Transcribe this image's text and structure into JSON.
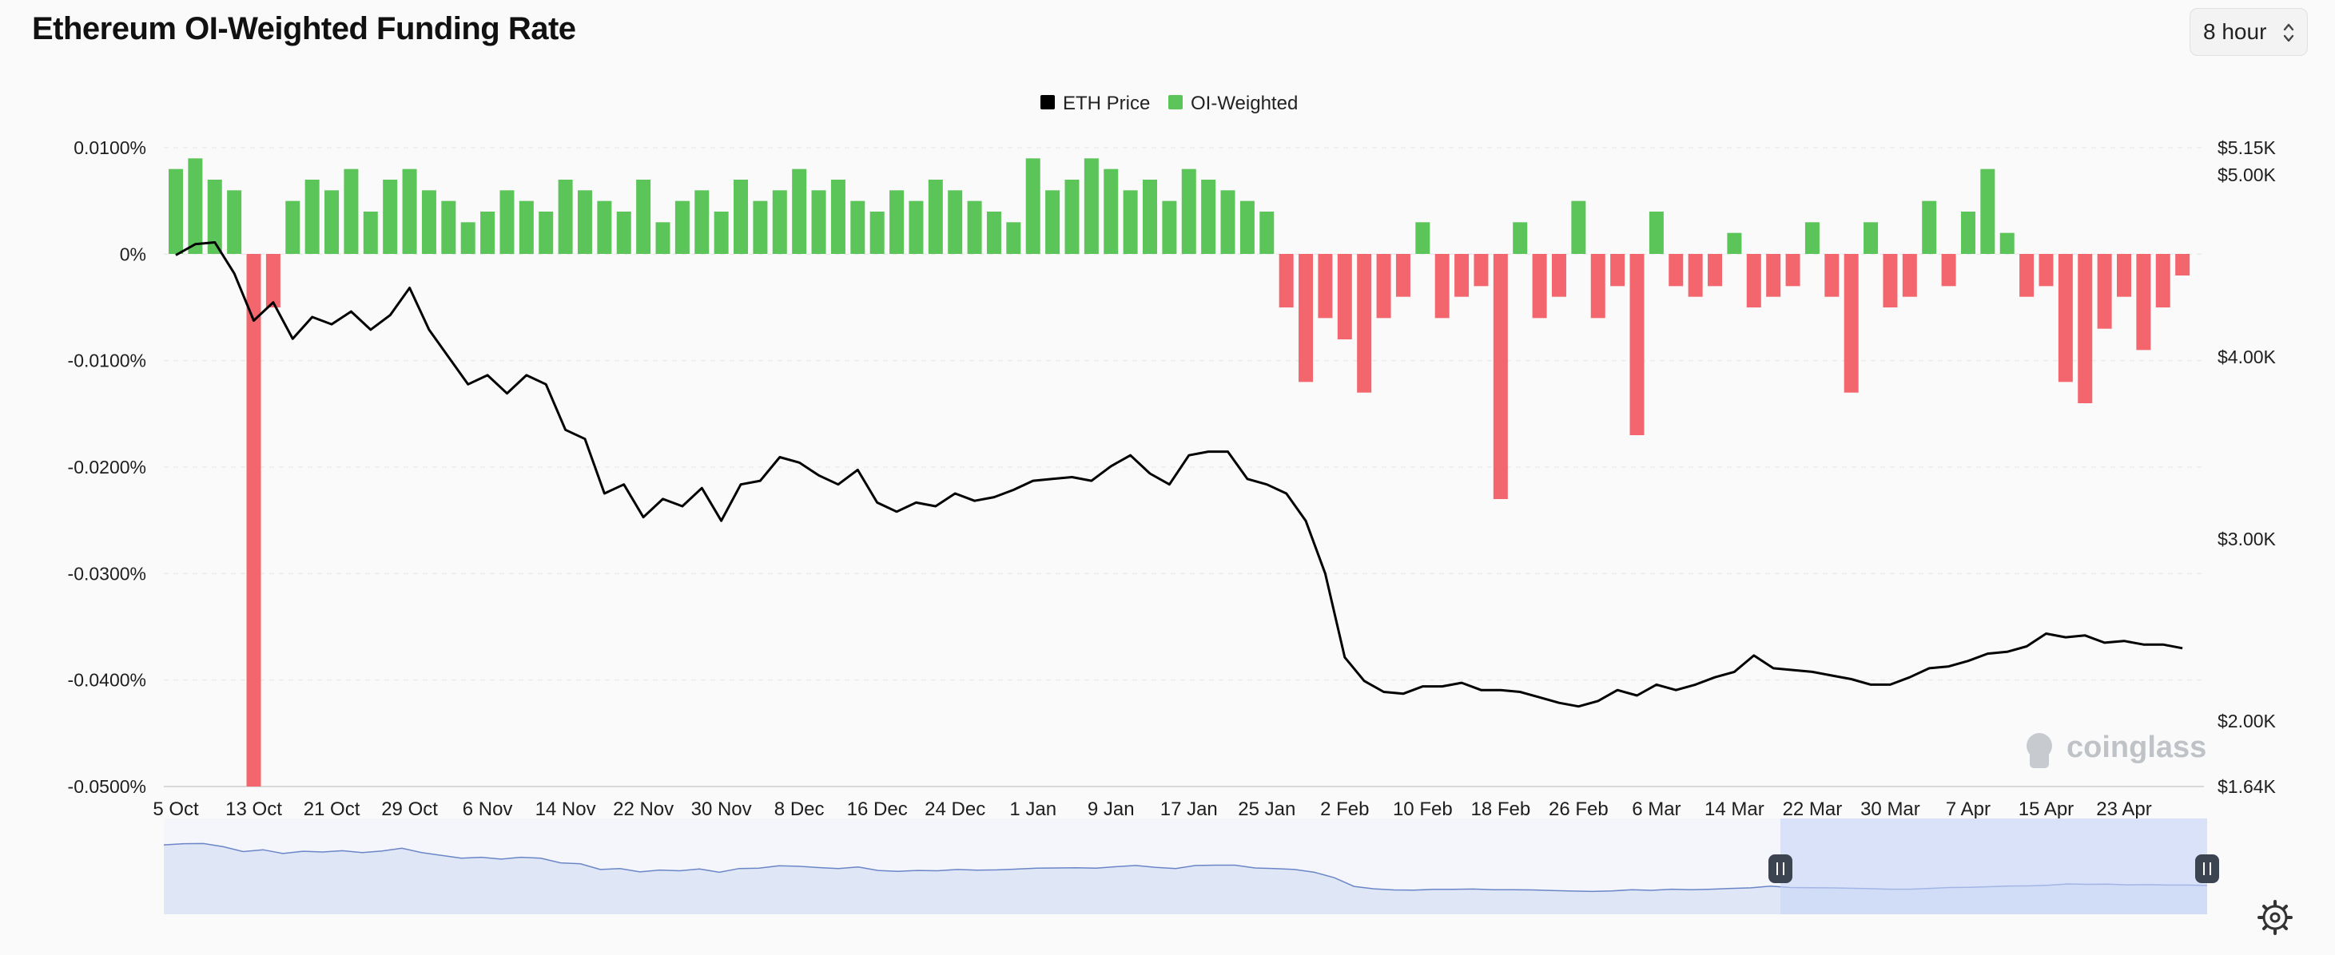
{
  "header": {
    "title": "Ethereum OI-Weighted Funding Rate",
    "interval": "8 hour"
  },
  "watermark": "coinglass",
  "colors": {
    "price_line": "#000000",
    "positive": "#5cc55a",
    "negative": "#f4666e",
    "navigator_fill": "#dfe6f5",
    "navigator_line": "#6b86c8",
    "navigator_selection": "#c8d5f8"
  },
  "icons": [
    "chevron-updown-icon",
    "settings-icon",
    "coinglass-logo-icon"
  ],
  "chart_data": {
    "type": "area",
    "title": "Ethereum OI-Weighted Funding Rate",
    "legend": {
      "placement": "top-center",
      "entries": [
        "ETH Price",
        "OI-Weighted"
      ]
    },
    "grid": true,
    "x_ticks": [
      "5 Oct",
      "13 Oct",
      "21 Oct",
      "29 Oct",
      "6 Nov",
      "14 Nov",
      "22 Nov",
      "30 Nov",
      "8 Dec",
      "16 Dec",
      "24 Dec",
      "1 Jan",
      "9 Jan",
      "17 Jan",
      "25 Jan",
      "2 Feb",
      "10 Feb",
      "18 Feb",
      "26 Feb",
      "6 Mar",
      "14 Mar",
      "22 Mar",
      "30 Mar",
      "7 Apr",
      "15 Apr",
      "23 Apr"
    ],
    "y_left": {
      "range": [
        -0.05,
        0.01
      ],
      "ticks": [
        "0.0100%",
        "0%",
        "-0.0100%",
        "-0.0200%",
        "-0.0300%",
        "-0.0400%",
        "-0.0500%"
      ]
    },
    "y_right": {
      "range": [
        1640,
        5150
      ],
      "ticks": [
        "$5.15K",
        "$5.00K",
        "$4.00K",
        "$3.00K",
        "$2.00K",
        "$1.64K"
      ],
      "tick_values": [
        5150,
        5000,
        4000,
        3000,
        2000,
        1640
      ]
    },
    "series": [
      {
        "name": "ETH Price",
        "axis": "right",
        "x": [
          "5 Oct",
          "7 Oct",
          "9 Oct",
          "11 Oct",
          "13 Oct",
          "15 Oct",
          "17 Oct",
          "19 Oct",
          "21 Oct",
          "23 Oct",
          "25 Oct",
          "27 Oct",
          "29 Oct",
          "31 Oct",
          "2 Nov",
          "4 Nov",
          "6 Nov",
          "8 Nov",
          "10 Nov",
          "12 Nov",
          "14 Nov",
          "16 Nov",
          "18 Nov",
          "20 Nov",
          "22 Nov",
          "24 Nov",
          "26 Nov",
          "28 Nov",
          "30 Nov",
          "2 Dec",
          "4 Dec",
          "6 Dec",
          "8 Dec",
          "10 Dec",
          "12 Dec",
          "14 Dec",
          "16 Dec",
          "18 Dec",
          "20 Dec",
          "22 Dec",
          "24 Dec",
          "26 Dec",
          "28 Dec",
          "30 Dec",
          "1 Jan",
          "3 Jan",
          "5 Jan",
          "7 Jan",
          "9 Jan",
          "11 Jan",
          "13 Jan",
          "15 Jan",
          "17 Jan",
          "19 Jan",
          "21 Jan",
          "23 Jan",
          "25 Jan",
          "27 Jan",
          "29 Jan",
          "31 Jan",
          "2 Feb",
          "4 Feb",
          "6 Feb",
          "8 Feb",
          "10 Feb",
          "12 Feb",
          "14 Feb",
          "16 Feb",
          "18 Feb",
          "20 Feb",
          "22 Feb",
          "24 Feb",
          "26 Feb",
          "28 Feb",
          "2 Mar",
          "4 Mar",
          "6 Mar",
          "8 Mar",
          "10 Mar",
          "12 Mar",
          "14 Mar",
          "16 Mar",
          "18 Mar",
          "20 Mar",
          "22 Mar",
          "24 Mar",
          "26 Mar",
          "28 Mar",
          "30 Mar",
          "1 Apr",
          "3 Apr",
          "5 Apr",
          "7 Apr",
          "9 Apr",
          "11 Apr",
          "13 Apr",
          "15 Apr",
          "17 Apr",
          "19 Apr",
          "21 Apr",
          "23 Apr",
          "25 Apr",
          "27 Apr",
          "29 Apr"
        ],
        "values": [
          4560,
          4620,
          4630,
          4460,
          4200,
          4300,
          4100,
          4220,
          4180,
          4250,
          4150,
          4230,
          4380,
          4150,
          4000,
          3850,
          3900,
          3800,
          3900,
          3850,
          3600,
          3550,
          3250,
          3300,
          3120,
          3220,
          3180,
          3280,
          3100,
          3300,
          3320,
          3450,
          3420,
          3350,
          3300,
          3380,
          3200,
          3150,
          3200,
          3180,
          3250,
          3210,
          3230,
          3270,
          3320,
          3330,
          3340,
          3320,
          3400,
          3460,
          3360,
          3300,
          3460,
          3480,
          3480,
          3330,
          3300,
          3250,
          3100,
          2810,
          2350,
          2220,
          2160,
          2150,
          2190,
          2190,
          2210,
          2170,
          2170,
          2160,
          2130,
          2100,
          2080,
          2110,
          2170,
          2140,
          2200,
          2170,
          2200,
          2240,
          2270,
          2360,
          2290,
          2280,
          2270,
          2250,
          2230,
          2200,
          2200,
          2240,
          2290,
          2300,
          2330,
          2370,
          2380,
          2410,
          2480,
          2460,
          2470,
          2430,
          2440,
          2420,
          2420,
          2400
        ]
      },
      {
        "name": "OI-Weighted",
        "axis": "left",
        "x": [
          "5 Oct",
          "7 Oct",
          "9 Oct",
          "11 Oct",
          "13 Oct",
          "15 Oct",
          "17 Oct",
          "19 Oct",
          "21 Oct",
          "23 Oct",
          "25 Oct",
          "27 Oct",
          "29 Oct",
          "31 Oct",
          "2 Nov",
          "4 Nov",
          "6 Nov",
          "8 Nov",
          "10 Nov",
          "12 Nov",
          "14 Nov",
          "16 Nov",
          "18 Nov",
          "20 Nov",
          "22 Nov",
          "24 Nov",
          "26 Nov",
          "28 Nov",
          "30 Nov",
          "2 Dec",
          "4 Dec",
          "6 Dec",
          "8 Dec",
          "10 Dec",
          "12 Dec",
          "14 Dec",
          "16 Dec",
          "18 Dec",
          "20 Dec",
          "22 Dec",
          "24 Dec",
          "26 Dec",
          "28 Dec",
          "30 Dec",
          "1 Jan",
          "3 Jan",
          "5 Jan",
          "7 Jan",
          "9 Jan",
          "11 Jan",
          "13 Jan",
          "15 Jan",
          "17 Jan",
          "19 Jan",
          "21 Jan",
          "23 Jan",
          "25 Jan",
          "27 Jan",
          "29 Jan",
          "31 Jan",
          "2 Feb",
          "4 Feb",
          "6 Feb",
          "8 Feb",
          "10 Feb",
          "12 Feb",
          "14 Feb",
          "16 Feb",
          "18 Feb",
          "20 Feb",
          "22 Feb",
          "24 Feb",
          "26 Feb",
          "28 Feb",
          "2 Mar",
          "4 Mar",
          "6 Mar",
          "8 Mar",
          "10 Mar",
          "12 Mar",
          "14 Mar",
          "16 Mar",
          "18 Mar",
          "20 Mar",
          "22 Mar",
          "24 Mar",
          "26 Mar",
          "28 Mar",
          "30 Mar",
          "1 Apr",
          "3 Apr",
          "5 Apr",
          "7 Apr",
          "9 Apr",
          "11 Apr",
          "13 Apr",
          "15 Apr",
          "17 Apr",
          "19 Apr",
          "21 Apr",
          "23 Apr",
          "25 Apr",
          "27 Apr",
          "29 Apr"
        ],
        "values": [
          0.008,
          0.009,
          0.007,
          0.006,
          -0.05,
          -0.005,
          0.005,
          0.007,
          0.006,
          0.008,
          0.004,
          0.007,
          0.008,
          0.006,
          0.005,
          0.003,
          0.004,
          0.006,
          0.005,
          0.004,
          0.007,
          0.006,
          0.005,
          0.004,
          0.007,
          0.003,
          0.005,
          0.006,
          0.004,
          0.007,
          0.005,
          0.006,
          0.008,
          0.006,
          0.007,
          0.005,
          0.004,
          0.006,
          0.005,
          0.007,
          0.006,
          0.005,
          0.004,
          0.003,
          0.009,
          0.006,
          0.007,
          0.009,
          0.008,
          0.006,
          0.007,
          0.005,
          0.008,
          0.007,
          0.006,
          0.005,
          0.004,
          -0.005,
          -0.012,
          -0.006,
          -0.008,
          -0.013,
          -0.006,
          -0.004,
          0.003,
          -0.006,
          -0.004,
          -0.003,
          -0.023,
          0.003,
          -0.006,
          -0.004,
          0.005,
          -0.006,
          -0.003,
          -0.017,
          0.004,
          -0.003,
          -0.004,
          -0.003,
          0.002,
          -0.005,
          -0.004,
          -0.003,
          0.003,
          -0.004,
          -0.013,
          0.003,
          -0.005,
          -0.004,
          0.005,
          -0.003,
          0.004,
          0.008,
          0.002,
          -0.004,
          -0.003,
          -0.012,
          -0.014,
          -0.007,
          -0.004,
          -0.009,
          -0.005,
          -0.002
        ]
      }
    ],
    "navigator": {
      "series": "ETH Price",
      "selection": [
        "20 Mar",
        "29 Apr"
      ]
    }
  }
}
